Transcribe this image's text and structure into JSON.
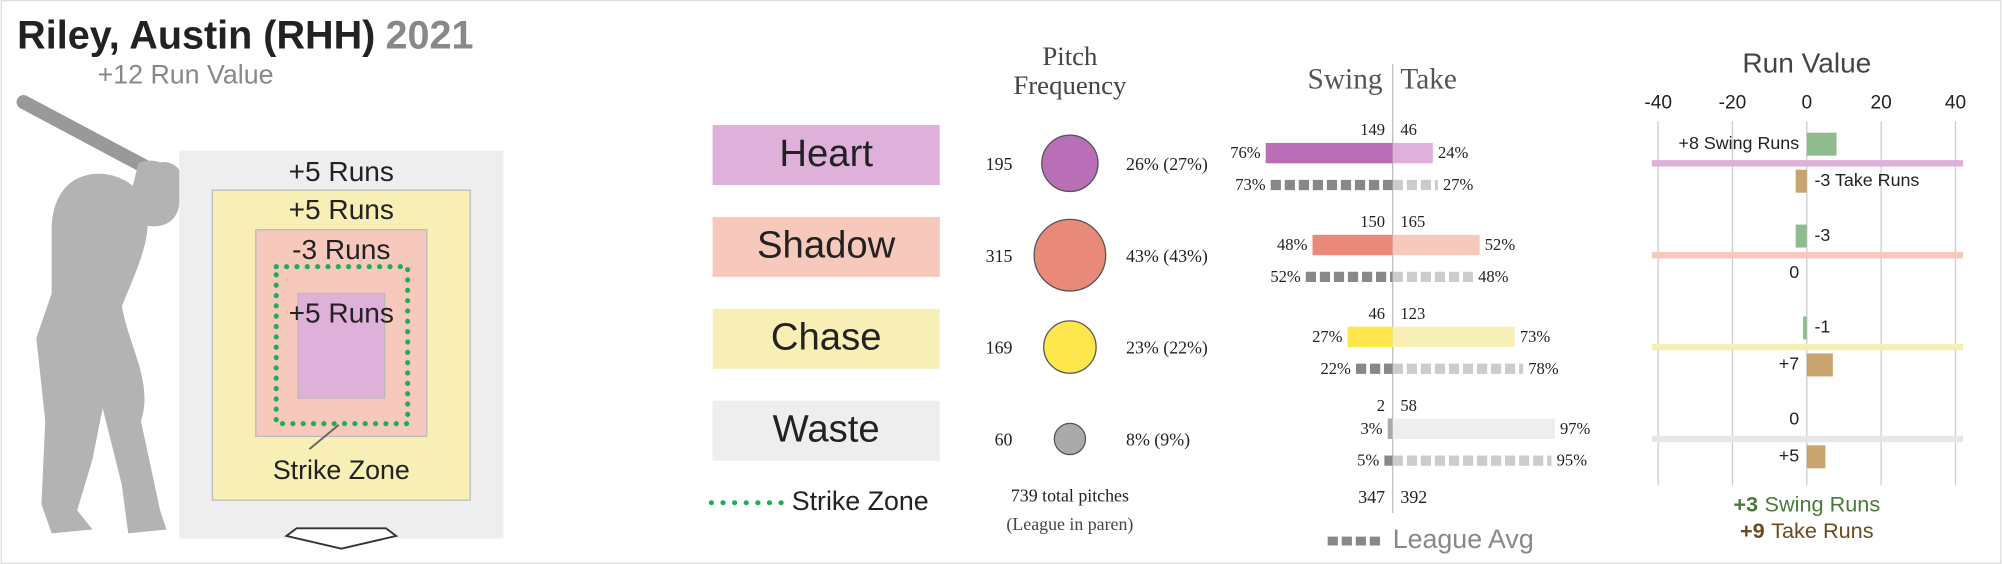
{
  "header": {
    "player": "Riley, Austin (RHH)",
    "year": "2021",
    "run_value": "+12 Run Value"
  },
  "zone_diagram": {
    "labels": [
      "+5 Runs",
      "+5 Runs",
      "-3 Runs",
      "+5 Runs"
    ],
    "strike_zone_label": "Strike Zone"
  },
  "legend": {
    "zones": [
      {
        "name": "Heart",
        "color": "#dfb0da",
        "bar_color": "#b96fb5"
      },
      {
        "name": "Shadow",
        "color": "#f6c9bc",
        "bar_color": "#e8897a"
      },
      {
        "name": "Chase",
        "color": "#f7efb5",
        "bar_color": "#fde74c"
      },
      {
        "name": "Waste",
        "color": "#eeeeee",
        "bar_color": "#aaaaaa"
      }
    ],
    "strike_zone": "Strike Zone"
  },
  "pitch_frequency": {
    "title": [
      "Pitch",
      "Frequency"
    ],
    "counts": [
      195,
      315,
      169,
      60
    ],
    "share_labels": [
      "26% (27%)",
      "43% (43%)",
      "23% (22%)",
      "8% (9%)"
    ],
    "total": "739 total pitches",
    "note": "(League in paren)"
  },
  "swing_take": {
    "title_swing": "Swing",
    "title_take": "Take",
    "rows": [
      {
        "counts": [
          149,
          46
        ],
        "pcts": [
          76,
          24
        ],
        "pct_labels": [
          "76%",
          "24%"
        ],
        "league_pcts": [
          73,
          27
        ],
        "league_labels": [
          "73%",
          "27%"
        ]
      },
      {
        "counts": [
          150,
          165
        ],
        "pcts": [
          48,
          52
        ],
        "pct_labels": [
          "48%",
          "52%"
        ],
        "league_pcts": [
          52,
          48
        ],
        "league_labels": [
          "52%",
          "48%"
        ]
      },
      {
        "counts": [
          46,
          123
        ],
        "pcts": [
          27,
          73
        ],
        "pct_labels": [
          "27%",
          "73%"
        ],
        "league_pcts": [
          22,
          78
        ],
        "league_labels": [
          "22%",
          "78%"
        ]
      },
      {
        "counts": [
          2,
          58
        ],
        "pcts": [
          3,
          97
        ],
        "pct_labels": [
          "3%",
          "97%"
        ],
        "league_pcts": [
          5,
          95
        ],
        "league_labels": [
          "5%",
          "95%"
        ]
      }
    ],
    "totals": [
      347,
      392
    ],
    "league_legend": "League Avg"
  },
  "run_value": {
    "title": "Run Value",
    "xlim": [
      -40,
      40
    ],
    "xticks": [
      -40,
      -20,
      0,
      20,
      40
    ],
    "swing": [
      8,
      -3,
      -1,
      0
    ],
    "swing_labels": [
      "+8 Swing Runs",
      "-3",
      "-1",
      "0"
    ],
    "take": [
      -3,
      0,
      7,
      5
    ],
    "take_labels": [
      "-3 Take Runs",
      "0",
      "+7",
      "+5"
    ],
    "totals": {
      "swing": "+3",
      "swing_text": "Swing Runs",
      "take": "+9",
      "take_text": "Take Runs"
    }
  }
}
